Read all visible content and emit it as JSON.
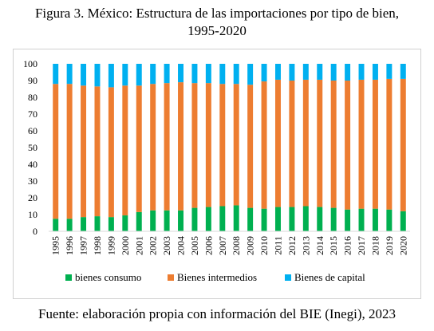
{
  "figure": {
    "title_line1": "Figura 3. México: Estructura de las importaciones por tipo de bien,",
    "title_line2": "1995-2020",
    "source": "Fuente: elaboración propia con información del BIE (Inegi), 2023"
  },
  "chart_data": {
    "type": "bar",
    "stacked": true,
    "title": "Figura 3. México: Estructura de las importaciones por tipo de bien, 1995-2020",
    "xlabel": "",
    "ylabel": "",
    "ylim": [
      0,
      100
    ],
    "yticks": [
      "0",
      "10",
      "20",
      "30",
      "40",
      "50",
      "60",
      "70",
      "80",
      "90",
      "100"
    ],
    "grid": false,
    "legend_position": "bottom",
    "categories": [
      "1995",
      "1996",
      "1997",
      "1998",
      "1999",
      "2000",
      "2001",
      "2002",
      "2003",
      "2004",
      "2005",
      "2006",
      "2007",
      "2008",
      "2009",
      "2010",
      "2011",
      "2012",
      "2013",
      "2014",
      "2015",
      "2016",
      "2017",
      "2018",
      "2019",
      "2020"
    ],
    "series": [
      {
        "name": "bienes consumo",
        "color": "#00b050",
        "values": [
          7.5,
          7.5,
          8.5,
          9.0,
          8.5,
          9.5,
          11.5,
          12.5,
          12.5,
          12.5,
          14.0,
          14.5,
          15.0,
          15.5,
          14.0,
          13.5,
          14.5,
          14.5,
          15.0,
          14.5,
          14.0,
          13.0,
          13.5,
          13.5,
          13.0,
          12.0
        ]
      },
      {
        "name": "Bienes intermedios",
        "color": "#ed7d31",
        "values": [
          80.5,
          80.5,
          78.5,
          77.5,
          77.5,
          77.5,
          75.5,
          75.5,
          76.0,
          76.5,
          74.5,
          74.0,
          73.0,
          72.5,
          73.5,
          76.0,
          76.0,
          75.5,
          75.5,
          76.0,
          76.0,
          77.0,
          77.0,
          77.0,
          78.0,
          79.0
        ]
      },
      {
        "name": "Bienes de capital",
        "color": "#00b0f0",
        "values": [
          12.0,
          12.0,
          13.0,
          13.5,
          14.0,
          13.0,
          13.0,
          12.0,
          11.5,
          11.0,
          11.5,
          11.5,
          12.0,
          12.0,
          12.5,
          10.5,
          9.5,
          10.0,
          9.5,
          9.5,
          10.0,
          10.0,
          9.5,
          9.5,
          9.0,
          9.0
        ]
      }
    ]
  }
}
